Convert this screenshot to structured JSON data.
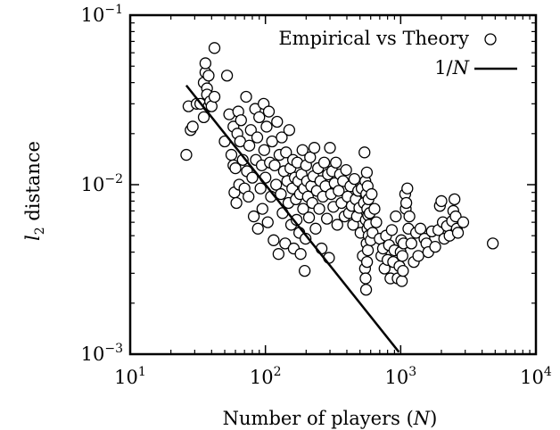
{
  "chart_data": {
    "type": "scatter",
    "xlabel": "Number of players (N)",
    "ylabel": "l2 distance",
    "x_scale": "log",
    "y_scale": "log",
    "xlim": [
      10,
      10000
    ],
    "ylim": [
      0.001,
      0.1
    ],
    "x_ticks": [
      {
        "value": 10,
        "label": "10^1"
      },
      {
        "value": 100,
        "label": "10^2"
      },
      {
        "value": 1000,
        "label": "10^3"
      },
      {
        "value": 10000,
        "label": "10^4"
      }
    ],
    "y_ticks": [
      {
        "value": 0.001,
        "label": "10^-3"
      },
      {
        "value": 0.01,
        "label": "10^-2"
      },
      {
        "value": 0.1,
        "label": "10^-1"
      }
    ],
    "grid": false,
    "legend_position": "top-right",
    "series": [
      {
        "name": "Empirical vs Theory",
        "kind": "scatter",
        "points": [
          [
            26,
            0.015
          ],
          [
            27,
            0.029
          ],
          [
            28,
            0.021
          ],
          [
            29,
            0.022
          ],
          [
            31,
            0.03
          ],
          [
            33,
            0.03
          ],
          [
            35,
            0.025
          ],
          [
            35,
            0.04
          ],
          [
            36,
            0.046
          ],
          [
            36,
            0.052
          ],
          [
            37,
            0.037
          ],
          [
            37,
            0.034
          ],
          [
            38,
            0.044
          ],
          [
            38,
            0.029
          ],
          [
            39,
            0.031
          ],
          [
            40,
            0.029
          ],
          [
            42,
            0.064
          ],
          [
            42,
            0.033
          ],
          [
            50,
            0.018
          ],
          [
            52,
            0.044
          ],
          [
            54,
            0.026
          ],
          [
            56,
            0.015
          ],
          [
            58,
            0.022
          ],
          [
            58,
            0.013
          ],
          [
            59,
            0.009
          ],
          [
            60,
            0.0125
          ],
          [
            61,
            0.0078
          ],
          [
            62,
            0.02
          ],
          [
            63,
            0.027
          ],
          [
            64,
            0.01
          ],
          [
            65,
            0.018
          ],
          [
            66,
            0.024
          ],
          [
            68,
            0.014
          ],
          [
            70,
            0.0095
          ],
          [
            72,
            0.033
          ],
          [
            73,
            0.012
          ],
          [
            75,
            0.0085
          ],
          [
            76,
            0.017
          ],
          [
            78,
            0.021
          ],
          [
            80,
            0.011
          ],
          [
            82,
            0.0065
          ],
          [
            84,
            0.028
          ],
          [
            85,
            0.014
          ],
          [
            87,
            0.019
          ],
          [
            88,
            0.0055
          ],
          [
            90,
            0.025
          ],
          [
            92,
            0.0095
          ],
          [
            94,
            0.013
          ],
          [
            95,
            0.0072
          ],
          [
            97,
            0.03
          ],
          [
            98,
            0.016
          ],
          [
            100,
            0.011
          ],
          [
            102,
            0.022
          ],
          [
            104,
            0.006
          ],
          [
            106,
            0.027
          ],
          [
            108,
            0.0135
          ],
          [
            110,
            0.0085
          ],
          [
            112,
            0.018
          ],
          [
            115,
            0.0047
          ],
          [
            117,
            0.013
          ],
          [
            120,
            0.01
          ],
          [
            122,
            0.0235
          ],
          [
            125,
            0.0039
          ],
          [
            127,
            0.015
          ],
          [
            130,
            0.0088
          ],
          [
            132,
            0.019
          ],
          [
            134,
            0.0068
          ],
          [
            137,
            0.012
          ],
          [
            140,
            0.0045
          ],
          [
            142,
            0.0155
          ],
          [
            145,
            0.0105
          ],
          [
            148,
            0.0078
          ],
          [
            150,
            0.021
          ],
          [
            153,
            0.0125
          ],
          [
            155,
            0.0058
          ],
          [
            158,
            0.0095
          ],
          [
            160,
            0.014
          ],
          [
            162,
            0.0042
          ],
          [
            165,
            0.011
          ],
          [
            168,
            0.0082
          ],
          [
            170,
            0.0062
          ],
          [
            172,
            0.0135
          ],
          [
            175,
            0.0105
          ],
          [
            178,
            0.0052
          ],
          [
            180,
            0.0088
          ],
          [
            182,
            0.0039
          ],
          [
            185,
            0.0115
          ],
          [
            188,
            0.016
          ],
          [
            190,
            0.0072
          ],
          [
            193,
            0.0095
          ],
          [
            195,
            0.0031
          ],
          [
            198,
            0.0048
          ],
          [
            200,
            0.013
          ],
          [
            203,
            0.0105
          ],
          [
            206,
            0.0085
          ],
          [
            210,
            0.0064
          ],
          [
            214,
            0.0145
          ],
          [
            218,
            0.0098
          ],
          [
            222,
            0.0078
          ],
          [
            226,
            0.0112
          ],
          [
            230,
            0.0165
          ],
          [
            235,
            0.0055
          ],
          [
            240,
            0.0092
          ],
          [
            245,
            0.0125
          ],
          [
            250,
            0.0072
          ],
          [
            255,
            0.0105
          ],
          [
            260,
            0.0042
          ],
          [
            266,
            0.0085
          ],
          [
            272,
            0.0135
          ],
          [
            278,
            0.0098
          ],
          [
            285,
            0.0063
          ],
          [
            290,
            0.0115
          ],
          [
            295,
            0.0037
          ],
          [
            300,
            0.0165
          ],
          [
            306,
            0.0088
          ],
          [
            312,
            0.012
          ],
          [
            318,
            0.0074
          ],
          [
            325,
            0.0102
          ],
          [
            332,
            0.0135
          ],
          [
            340,
            0.0058
          ],
          [
            348,
            0.0092
          ],
          [
            356,
            0.0115
          ],
          [
            365,
            0.0078
          ],
          [
            375,
            0.0105
          ],
          [
            385,
            0.0065
          ],
          [
            395,
            0.0122
          ],
          [
            405,
            0.0085
          ],
          [
            415,
            0.0068
          ],
          [
            425,
            0.0098
          ],
          [
            435,
            0.0075
          ],
          [
            445,
            0.0058
          ],
          [
            455,
            0.0108
          ],
          [
            465,
            0.0082
          ],
          [
            475,
            0.0065
          ],
          [
            485,
            0.0092
          ],
          [
            495,
            0.0073
          ],
          [
            505,
            0.0052
          ],
          [
            515,
            0.0095
          ],
          [
            525,
            0.0038
          ],
          [
            535,
            0.0078
          ],
          [
            540,
            0.0155
          ],
          [
            545,
            0.0032
          ],
          [
            548,
            0.0105
          ],
          [
            550,
            0.0028
          ],
          [
            552,
            0.0062
          ],
          [
            555,
            0.0024
          ],
          [
            557,
            0.0088
          ],
          [
            560,
            0.0045
          ],
          [
            562,
            0.0118
          ],
          [
            564,
            0.0035
          ],
          [
            566,
            0.0072
          ],
          [
            568,
            0.0055
          ],
          [
            570,
            0.0098
          ],
          [
            572,
            0.0041
          ],
          [
            575,
            0.0066
          ],
          [
            578,
            0.0082
          ],
          [
            580,
            0.005
          ],
          [
            585,
            0.0058
          ],
          [
            590,
            0.0068
          ],
          [
            600,
            0.0047
          ],
          [
            610,
            0.0088
          ],
          [
            620,
            0.0052
          ],
          [
            640,
            0.0072
          ],
          [
            660,
            0.006
          ],
          [
            700,
            0.0048
          ],
          [
            720,
            0.0038
          ],
          [
            740,
            0.0042
          ],
          [
            760,
            0.0032
          ],
          [
            780,
            0.005
          ],
          [
            800,
            0.0036
          ],
          [
            820,
            0.0044
          ],
          [
            840,
            0.0028
          ],
          [
            860,
            0.0054
          ],
          [
            880,
            0.0035
          ],
          [
            900,
            0.0041
          ],
          [
            920,
            0.0065
          ],
          [
            950,
            0.0028
          ],
          [
            980,
            0.0033
          ],
          [
            1000,
            0.004
          ],
          [
            1010,
            0.0047
          ],
          [
            1020,
            0.0027
          ],
          [
            1030,
            0.0038
          ],
          [
            1040,
            0.0031
          ],
          [
            1050,
            0.0045
          ],
          [
            1080,
            0.0088
          ],
          [
            1090,
            0.0072
          ],
          [
            1100,
            0.0078
          ],
          [
            1120,
            0.0095
          ],
          [
            1140,
            0.0055
          ],
          [
            1160,
            0.0065
          ],
          [
            1200,
            0.0045
          ],
          [
            1250,
            0.0035
          ],
          [
            1300,
            0.0052
          ],
          [
            1350,
            0.0038
          ],
          [
            1400,
            0.0055
          ],
          [
            1500,
            0.0048
          ],
          [
            1550,
            0.0045
          ],
          [
            1600,
            0.004
          ],
          [
            1700,
            0.0053
          ],
          [
            1800,
            0.0043
          ],
          [
            1900,
            0.0054
          ],
          [
            1950,
            0.0075
          ],
          [
            2000,
            0.008
          ],
          [
            2050,
            0.006
          ],
          [
            2100,
            0.0048
          ],
          [
            2200,
            0.0057
          ],
          [
            2300,
            0.005
          ],
          [
            2400,
            0.0061
          ],
          [
            2450,
            0.007
          ],
          [
            2500,
            0.0082
          ],
          [
            2550,
            0.0065
          ],
          [
            2600,
            0.0055
          ],
          [
            2650,
            0.0052
          ],
          [
            2900,
            0.006
          ],
          [
            4800,
            0.0045
          ]
        ]
      },
      {
        "name": "1/N",
        "kind": "line",
        "points": [
          [
            26,
            0.0385
          ],
          [
            970,
            0.00103
          ]
        ]
      }
    ]
  }
}
